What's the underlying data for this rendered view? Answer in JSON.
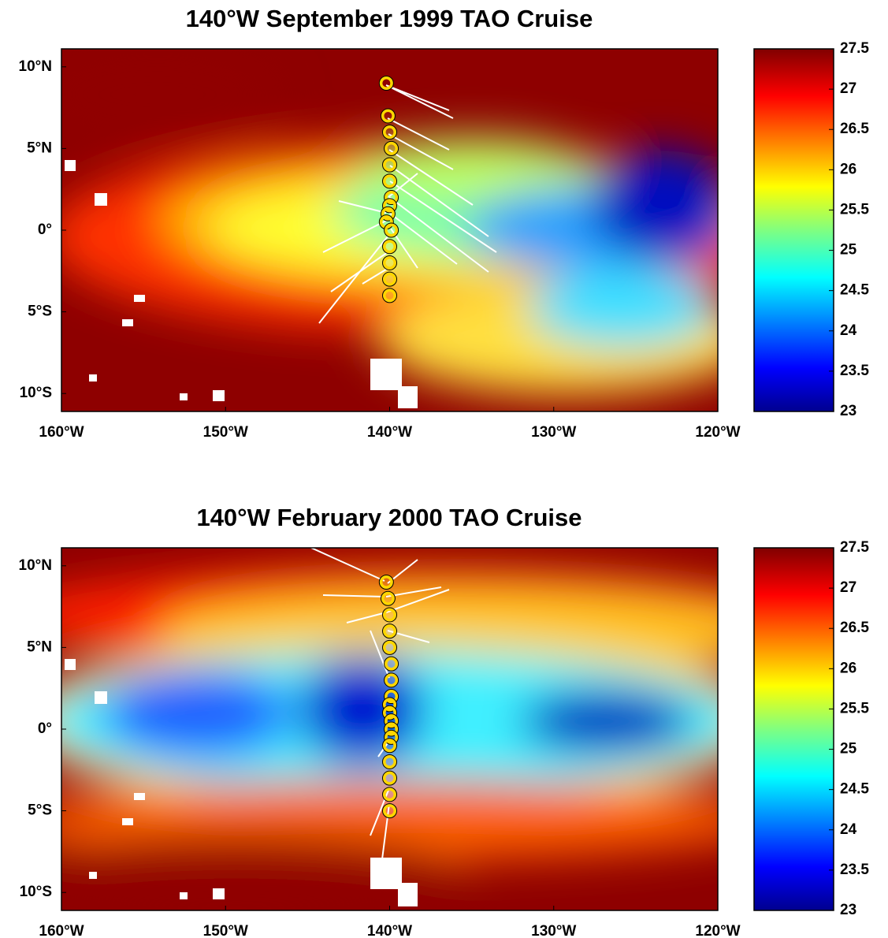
{
  "chart_data": [
    {
      "type": "map",
      "title": "140°W September 1999 TAO Cruise",
      "xlim": [
        -160,
        -120
      ],
      "xticks": [
        {
          "value": -160,
          "label": "160°W"
        },
        {
          "value": -150,
          "label": "150°W"
        },
        {
          "value": -140,
          "label": "140°W"
        },
        {
          "value": -130,
          "label": "130°W"
        },
        {
          "value": -120,
          "label": "120°W"
        }
      ],
      "ylim": [
        -11.1,
        11.1
      ],
      "yticks": [
        {
          "value": 10,
          "label": "10°N"
        },
        {
          "value": 5,
          "label": "5°N"
        },
        {
          "value": 0,
          "label": "0°"
        },
        {
          "value": -5,
          "label": "5°S"
        },
        {
          "value": -10,
          "label": "10°S"
        }
      ],
      "colorbar": {
        "lim": [
          23,
          27.5
        ],
        "ticks": [
          23,
          23.5,
          24,
          24.5,
          25,
          25.5,
          26,
          26.5,
          27,
          27.5
        ]
      },
      "stations": {
        "color": "#ffd700",
        "lat": [
          9,
          7,
          6,
          5,
          4,
          3,
          2,
          1.5,
          1,
          0.5,
          0,
          -1,
          -2,
          -3,
          -4
        ],
        "lon": [
          -140.2,
          -140.1,
          -140,
          -139.9,
          -140,
          -140,
          -139.9,
          -140,
          -140.1,
          -140.2,
          -139.9,
          -140,
          -140,
          -140,
          -140
        ]
      }
    },
    {
      "type": "map",
      "title": "140°W February 2000 TAO Cruise",
      "xlim": [
        -160,
        -120
      ],
      "xticks": [
        {
          "value": -160,
          "label": "160°W"
        },
        {
          "value": -150,
          "label": "150°W"
        },
        {
          "value": -140,
          "label": "140°W"
        },
        {
          "value": -130,
          "label": "130°W"
        },
        {
          "value": -120,
          "label": "120°W"
        }
      ],
      "ylim": [
        -11.1,
        11.1
      ],
      "yticks": [
        {
          "value": 10,
          "label": "10°N"
        },
        {
          "value": 5,
          "label": "5°N"
        },
        {
          "value": 0,
          "label": "0°"
        },
        {
          "value": -5,
          "label": "5°S"
        },
        {
          "value": -10,
          "label": "10°S"
        }
      ],
      "colorbar": {
        "lim": [
          23,
          27.5
        ],
        "ticks": [
          23,
          23.5,
          24,
          24.5,
          25,
          25.5,
          26,
          26.5,
          27,
          27.5
        ]
      },
      "stations": {
        "color": "#ffd700",
        "lat": [
          9,
          8,
          7,
          6,
          5,
          4,
          3,
          2,
          1.5,
          1,
          0.5,
          0,
          -0.5,
          -1,
          -2,
          -3,
          -4,
          -5
        ],
        "lon": [
          -140.2,
          -140.1,
          -140,
          -140,
          -140,
          -139.9,
          -139.9,
          -139.9,
          -140,
          -140,
          -139.9,
          -139.9,
          -139.9,
          -140,
          -140,
          -140,
          -140,
          -140
        ]
      }
    }
  ]
}
